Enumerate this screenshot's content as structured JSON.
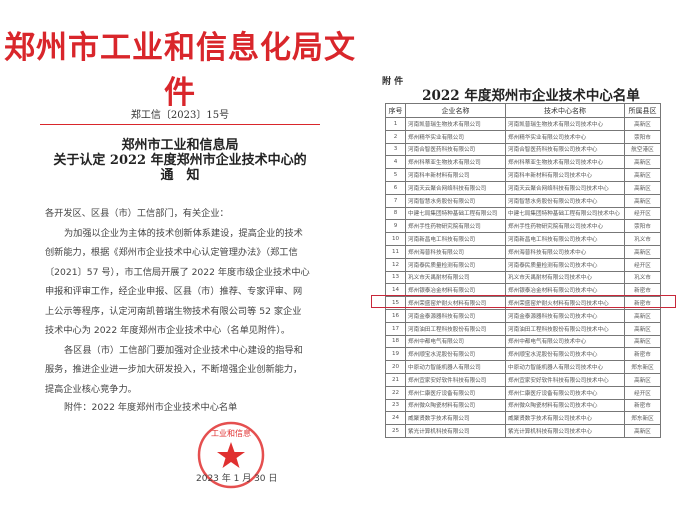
{
  "notice": {
    "header": "郑州市工业和信息化局文件",
    "doc_no": "郑工信〔2023〕15号",
    "title_lines": [
      "郑州市工业和信息局",
      "关于认定 2022 年度郑州市企业技术中心的",
      "通　知"
    ],
    "salutation": "各开发区、区县（市）工信部门，有关企业：",
    "para1": "为加强以企业为主体的技术创新体系建设，提高企业的技术创新能力，根据《郑州市企业技术中心认定管理办法》（郑工信〔2021〕57 号），市工信局开展了 2022 年度市级企业技术中心申报和评审工作，经企业申报、区县（市）推荐、专家评审、网上公示等程序，认定河南凯普瑞生物技术有限公司等 52 家企业技术中心为 2022 年度郑州市企业技术中心（名单见附件）。",
    "para2": "各区县（市）工信部门要加强对企业技术中心建设的指导和服务，推进企业进一步加大研发投入，不断增强企业创新能力，提高企业核心竞争力。",
    "attachment": "附件：2022 年度郑州市企业技术中心名单",
    "date": "2023 年 1 月 30 日",
    "seal_text": "郑州市工业和信息化局"
  },
  "annex": {
    "label": "附 件",
    "title": "2022 年度郑州市企业技术中心名单",
    "headers": [
      "序号",
      "企业名称",
      "技术中心名称",
      "所属县区"
    ],
    "highlight_row": 15,
    "highlight_color": "#c8283a",
    "rows": [
      [
        "1",
        "河南凯普瑞生物技术有限公司",
        "河南凯普瑞生物技术有限公司技术中心",
        "高新区"
      ],
      [
        "2",
        "郑州精华实业有限公司",
        "郑州精华实业有限公司技术中心",
        "荥阳市"
      ],
      [
        "3",
        "河南合智医药科技有限公司",
        "河南合智医药科技有限公司技术中心",
        "航空港区"
      ],
      [
        "4",
        "郑州科蒂亚生物技术有限公司",
        "郑州科蒂亚生物技术有限公司技术中心",
        "高新区"
      ],
      [
        "5",
        "河南科丰新材料有限公司",
        "河南科丰新材料有限公司技术中心",
        "高新区"
      ],
      [
        "6",
        "河南天云聚合网络科技有限公司",
        "河南天云聚合网络科技有限公司技术中心",
        "高新区"
      ],
      [
        "7",
        "河南智慧水务股份有限公司",
        "河南智慧水务股份有限公司技术中心",
        "高新区"
      ],
      [
        "8",
        "中建七局集团特种基础工程有限公司",
        "中建七局集团特种基础工程有限公司技术中心",
        "经开区"
      ],
      [
        "9",
        "郑州手性药物研究院有限公司",
        "郑州手性药物研究院有限公司技术中心",
        "荥阳市"
      ],
      [
        "10",
        "河南新昌电工科技有限公司",
        "河南新昌电工科技有限公司技术中心",
        "巩义市"
      ],
      [
        "11",
        "郑州海普科技有限公司",
        "郑州海普科技有限公司技术中心",
        "高新区"
      ],
      [
        "12",
        "河南泰民质量检测有限公司",
        "河南泰民质量检测有限公司技术中心",
        "经开区"
      ],
      [
        "13",
        "巩义市天禹耐材有限公司",
        "巩义市天禹耐材有限公司技术中心",
        "巩义市"
      ],
      [
        "14",
        "郑州银泰冶金材料有限公司",
        "郑州银泰冶金材料有限公司技术中心",
        "新密市"
      ],
      [
        "15",
        "郑州荣盛窑炉耐火材料有限公司",
        "郑州荣盛窑炉耐火材料有限公司技术中心",
        "新密市"
      ],
      [
        "16",
        "河南金泰源器科技有限公司",
        "河南金泰源器科技有限公司技术中心",
        "高新区"
      ],
      [
        "17",
        "河南油田工程科技股份有限公司",
        "河南油田工程科技股份有限公司技术中心",
        "高新区"
      ],
      [
        "18",
        "郑州中都电气有限公司",
        "郑州中都电气有限公司技术中心",
        "高新区"
      ],
      [
        "19",
        "郑州顺宝水泥股份有限公司",
        "郑州顺宝水泥股份有限公司技术中心",
        "新密市"
      ],
      [
        "20",
        "中原动力智能机器人有限公司",
        "中原动力智能机器人有限公司技术中心",
        "郑东新区"
      ],
      [
        "21",
        "郑州宜家安好软件科技有限公司",
        "郑州宜家安好软件科技有限公司技术中心",
        "高新区"
      ],
      [
        "22",
        "郑州仁康医疗设备有限公司",
        "郑州仁康医疗设备有限公司技术中心",
        "经开区"
      ],
      [
        "23",
        "郑州微众陶瓷材料有限公司",
        "郑州微众陶瓷材料有限公司技术中心",
        "新密市"
      ],
      [
        "24",
        "威聚贤数字技术有限公司",
        "威聚贤数字技术有限公司技术中心",
        "郑东新区"
      ],
      [
        "25",
        "紫光计算机科技有限公司",
        "紫光计算机科技有限公司技术中心",
        "高新区"
      ]
    ]
  }
}
